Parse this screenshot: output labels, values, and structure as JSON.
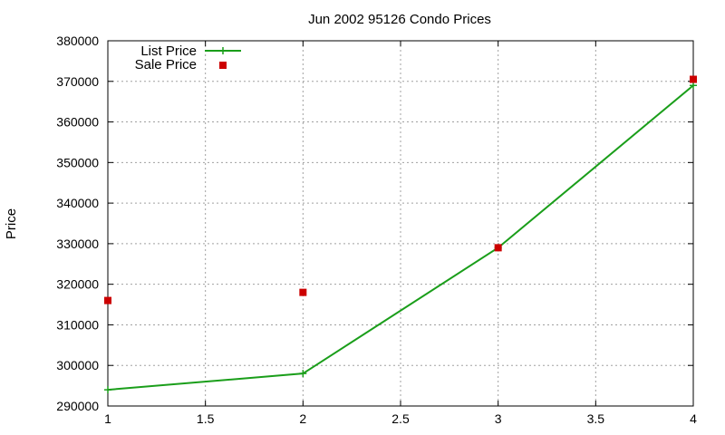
{
  "chart_data": {
    "type": "line",
    "title": "Jun 2002 95126 Condo Prices",
    "xlabel": "",
    "ylabel": "Price",
    "xlim": [
      1,
      4
    ],
    "ylim": [
      290000,
      380000
    ],
    "x_ticks": [
      "1",
      "1.5",
      "2",
      "2.5",
      "3",
      "3.5",
      "4"
    ],
    "y_ticks": [
      "290000",
      "300000",
      "310000",
      "320000",
      "330000",
      "340000",
      "350000",
      "360000",
      "370000",
      "380000"
    ],
    "grid": true,
    "legend_position": "top-left",
    "series": [
      {
        "name": "List Price",
        "style": "lines+points",
        "marker": "plus",
        "color": "#1a9e1a",
        "x": [
          1,
          2,
          3,
          4
        ],
        "y": [
          294000,
          298000,
          329000,
          369000
        ]
      },
      {
        "name": "Sale Price",
        "style": "points",
        "marker": "square",
        "color": "#cc0000",
        "x": [
          1,
          2,
          3,
          4
        ],
        "y": [
          316000,
          318000,
          329000,
          370500
        ]
      }
    ]
  }
}
